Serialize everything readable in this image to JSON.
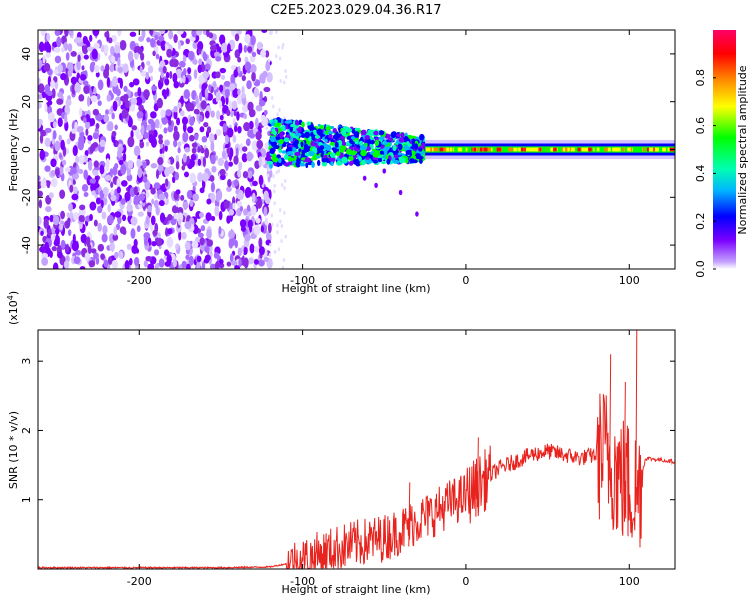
{
  "title": "C2E5.2023.029.04.36.R17",
  "colors": {
    "snr_line": "#e8231e",
    "spec_bg": "#7b00ff",
    "colorbar": [
      "#c4a3ff",
      "#7b00ff",
      "#0000ff",
      "#00b7ff",
      "#00ffb0",
      "#00ff00",
      "#ffff00",
      "#ff8000",
      "#ff0000",
      "#ff0066"
    ]
  },
  "chart_data": [
    {
      "type": "heatmap",
      "name": "spectrogram",
      "xlabel": "Height of straight line (km)",
      "ylabel": "Frequency (Hz)",
      "xlim": [
        -262,
        128
      ],
      "ylim": [
        -50,
        50
      ],
      "xticks": [
        -200,
        -100,
        0,
        100
      ],
      "yticks": [
        -40,
        -20,
        0,
        20,
        40
      ],
      "colorbar": {
        "label": "Normalized spectral amplitude",
        "range": [
          0.0,
          1.0
        ],
        "ticks": [
          0.0,
          0.2,
          0.4,
          0.6,
          0.8
        ]
      },
      "regions": [
        {
          "x_range": [
            -262,
            -120
          ],
          "freq_range": [
            -50,
            50
          ],
          "amplitude": "low, broadband noise"
        },
        {
          "x_range": [
            -120,
            -25
          ],
          "freq_center": 3,
          "freq_halfwidth": 10,
          "amplitude": "0.2-0.5"
        },
        {
          "x_range": [
            -25,
            128
          ],
          "freq_center": 0,
          "freq_halfwidth": 3,
          "amplitude": "0.6-1.0"
        }
      ]
    },
    {
      "type": "line",
      "name": "snr",
      "xlabel": "Height of straight line (km)",
      "ylabel": "SNR (10 * v/v)",
      "y_multiplier_label": "(x10",
      "y_multiplier_exp": "4",
      "y_multiplier_close": ")",
      "xlim": [
        -262,
        128
      ],
      "ylim": [
        0,
        3.45
      ],
      "xticks": [
        -200,
        -100,
        0,
        100
      ],
      "yticks": [
        1,
        2,
        3
      ],
      "series": [
        {
          "x": [
            -262,
            -200,
            -150,
            -120,
            -100,
            -90,
            -80,
            -70,
            -60,
            -50,
            -40,
            -30,
            -20,
            -10,
            0,
            10,
            20,
            30,
            40,
            50,
            60,
            70,
            80,
            85,
            90,
            95,
            100,
            105,
            110,
            128
          ],
          "y": [
            0.02,
            0.02,
            0.02,
            0.03,
            0.12,
            0.2,
            0.28,
            0.35,
            0.4,
            0.45,
            0.55,
            0.7,
            0.8,
            0.95,
            1.05,
            1.25,
            1.45,
            1.55,
            1.65,
            1.7,
            1.65,
            1.6,
            1.65,
            1.7,
            1.5,
            1.3,
            1.2,
            1.1,
            1.6,
            1.55
          ]
        }
      ]
    }
  ]
}
